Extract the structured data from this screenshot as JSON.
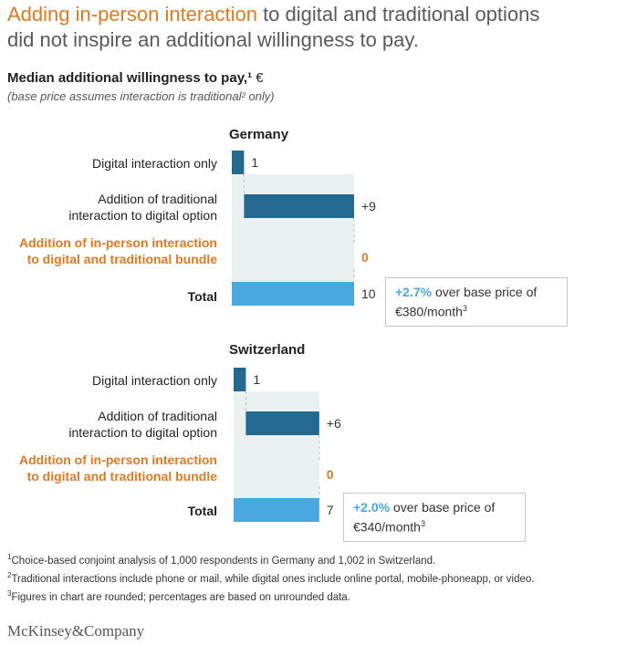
{
  "title": {
    "highlight": "Adding in-person interaction",
    "rest_line1": " to digital and traditional options",
    "line2": "did not inspire an additional willingness to pay."
  },
  "subtitle": {
    "main": "Median additional willingness to pay,¹",
    "unit": " €"
  },
  "note": "(base price assumes interaction is traditional² only)",
  "colors": {
    "dark_bar": "#236990",
    "total_bar": "#4aa8e0",
    "band": "#ebf0f0",
    "accent_orange": "#e07a1f"
  },
  "chart_data": [
    {
      "type": "waterfall",
      "title": "Germany",
      "categories": [
        "Digital interaction only",
        "Addition of traditional interaction to digital option",
        "Addition of in-person interaction to digital and traditional bundle",
        "Total"
      ],
      "values": [
        1,
        9,
        0,
        10
      ],
      "value_labels": [
        "1",
        "+9",
        "0",
        "10"
      ],
      "callout": {
        "pct": "+2.7%",
        "text": " over base price of",
        "base": "€380/month",
        "sup": "3"
      }
    },
    {
      "type": "waterfall",
      "title": "Switzerland",
      "categories": [
        "Digital interaction only",
        "Addition of traditional interaction to digital option",
        "Addition of in-person interaction to digital and traditional bundle",
        "Total"
      ],
      "values": [
        1,
        6,
        0,
        7
      ],
      "value_labels": [
        "1",
        "+6",
        "0",
        "7"
      ],
      "callout": {
        "pct": "+2.0%",
        "text": " over base price of",
        "base": "€340/month",
        "sup": "3"
      }
    }
  ],
  "label_lines": {
    "digital": [
      "Digital interaction only"
    ],
    "traditional": [
      "Addition of traditional",
      "interaction to digital option"
    ],
    "inperson": [
      "Addition of in-person interaction",
      "to digital and traditional bundle"
    ],
    "total": [
      "Total"
    ]
  },
  "footnotes": [
    {
      "sup": "1",
      "text": "Choice-based conjoint analysis of 1,000 respondents in Germany and 1,002 in Switzerland."
    },
    {
      "sup": "2",
      "text": "Traditional interactions include phone or mail, while digital ones include online portal, mobile-phoneapp, or video."
    },
    {
      "sup": "3",
      "text": "Figures in chart are rounded; percentages are based on unrounded data."
    }
  ],
  "brand": "McKinsey&Company"
}
